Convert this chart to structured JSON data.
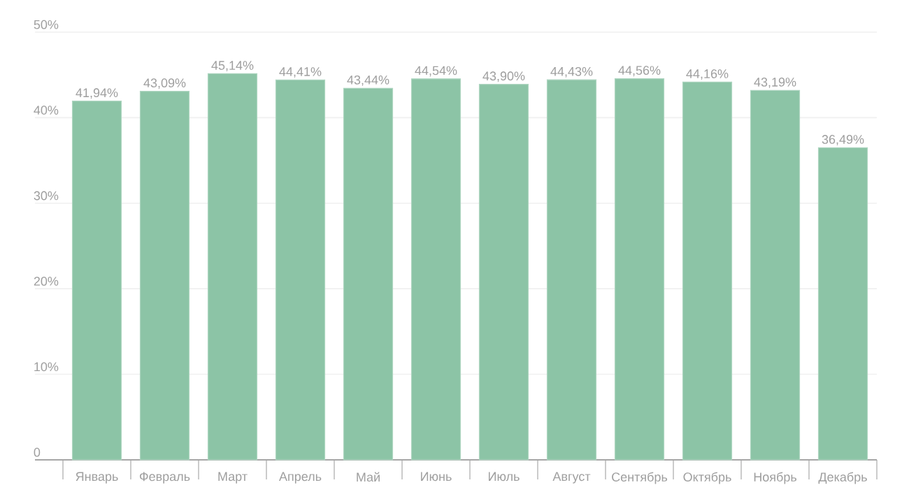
{
  "chart_data": {
    "type": "bar",
    "categories": [
      "Январь",
      "Февраль",
      "Март",
      "Апрель",
      "Май",
      "Июнь",
      "Июль",
      "Август",
      "Сентябрь",
      "Октябрь",
      "Ноябрь",
      "Декабрь"
    ],
    "values": [
      41.94,
      43.09,
      45.14,
      44.41,
      43.44,
      44.54,
      43.9,
      44.43,
      44.56,
      44.16,
      43.19,
      36.49
    ],
    "value_labels": [
      "41,94%",
      "43,09%",
      "45,14%",
      "44,41%",
      "43,44%",
      "44,54%",
      "43,90%",
      "44,43%",
      "44,56%",
      "44,16%",
      "43,19%",
      "36,49%"
    ],
    "color": "#8cc4a6",
    "ylim": [
      0,
      50
    ],
    "yticks": [
      0,
      {
        "value": 10,
        "label": "10%"
      },
      {
        "value": 20,
        "label": "20%"
      },
      {
        "value": 30,
        "label": "30%"
      },
      {
        "value": 40,
        "label": "40%"
      },
      {
        "value": 50,
        "label": "50%"
      }
    ],
    "grid": "y"
  }
}
